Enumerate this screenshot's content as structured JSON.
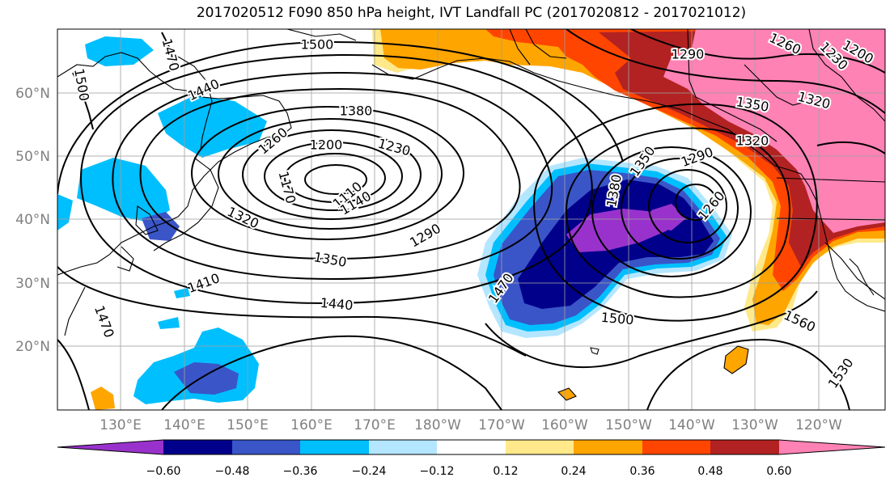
{
  "title": "2017020512 F090 850 hPa height, IVT Landfall PC (2017020812 - 2017021012)",
  "lon_labels": [
    "130°E",
    "140°E",
    "150°E",
    "160°E",
    "170°E",
    "180°W",
    "170°W",
    "160°W",
    "150°W",
    "140°W",
    "130°W",
    "120°W"
  ],
  "lat_labels": [
    "60°N",
    "50°N",
    "40°N",
    "30°N",
    "20°N"
  ],
  "colorbar": {
    "tick_labels": [
      "−0.60",
      "−0.48",
      "−0.36",
      "−0.24",
      "−0.12",
      "0.12",
      "0.24",
      "0.36",
      "0.48",
      "0.60"
    ],
    "colors": [
      "#9932cc",
      "#00008b",
      "#3a55c8",
      "#00bfff",
      "#b4e6ff",
      "#ffffff",
      "#ffe98a",
      "#ffa500",
      "#ff4500",
      "#b22222",
      "#ff82b4"
    ]
  },
  "contour_labels": [
    "1500",
    "1470",
    "1500",
    "1440",
    "1380",
    "1260",
    "1200",
    "1230",
    "1170",
    "1110",
    "1140",
    "1320",
    "1290",
    "1350",
    "1410",
    "1440",
    "1470",
    "1500",
    "1470",
    "1380",
    "1350",
    "1290",
    "1260",
    "1290",
    "1260",
    "1320",
    "1350",
    "1320",
    "1230",
    "1200",
    "1560",
    "1530"
  ]
}
